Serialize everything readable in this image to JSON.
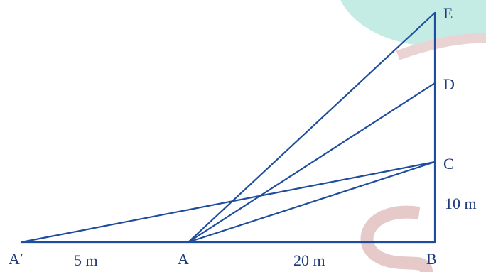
{
  "points": {
    "A_prime": "A′",
    "A": "A",
    "B": "B",
    "C": "C",
    "D": "D",
    "E": "E"
  },
  "measurements": {
    "A_prime_to_A": "5 m",
    "A_to_B": "20 m",
    "B_to_C": "10 m"
  },
  "colors": {
    "line": "#1f4d9e",
    "label": "#1f3a7a",
    "watermark_teal": "#c4ece4",
    "watermark_rose": "#e8cfd0"
  }
}
